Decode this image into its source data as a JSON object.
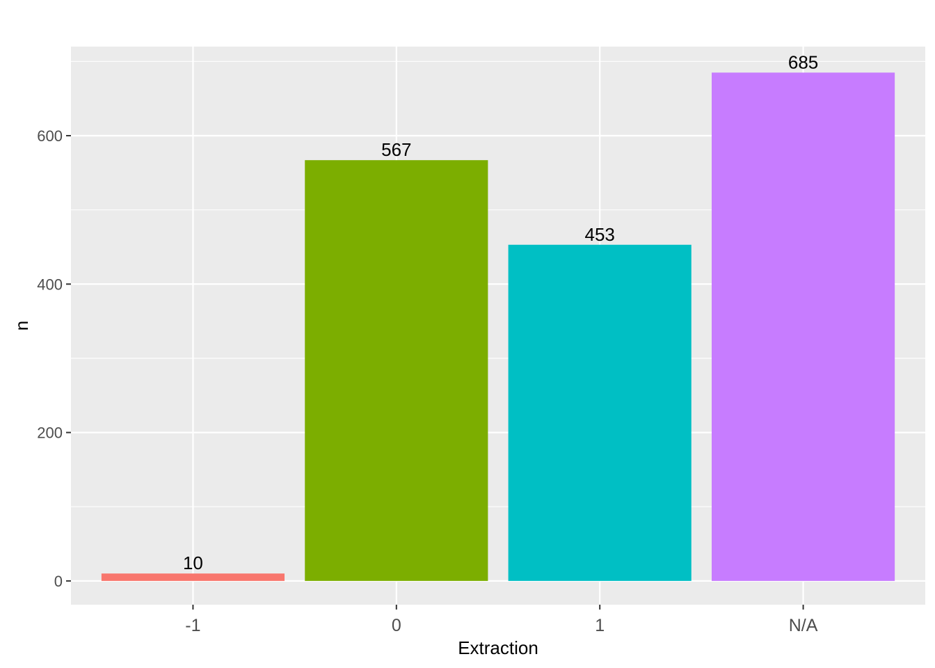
{
  "chart_data": {
    "type": "bar",
    "categories": [
      "-1",
      "0",
      "1",
      "N/A"
    ],
    "values": [
      10,
      567,
      453,
      685
    ],
    "data_labels": [
      "10",
      "567",
      "453",
      "685"
    ],
    "colors": [
      "#F8766D",
      "#7CAE00",
      "#00BFC4",
      "#C77CFF"
    ],
    "title": "",
    "xlabel": "Extraction",
    "ylabel": "n",
    "ylim": [
      -32,
      720
    ],
    "yticks": [
      0,
      200,
      400,
      600
    ],
    "ytick_labels": [
      "0",
      "200",
      "400",
      "600"
    ],
    "grid": true,
    "panel_background": "#EBEBEB",
    "grid_color": "#FFFFFF",
    "legend": "none"
  }
}
